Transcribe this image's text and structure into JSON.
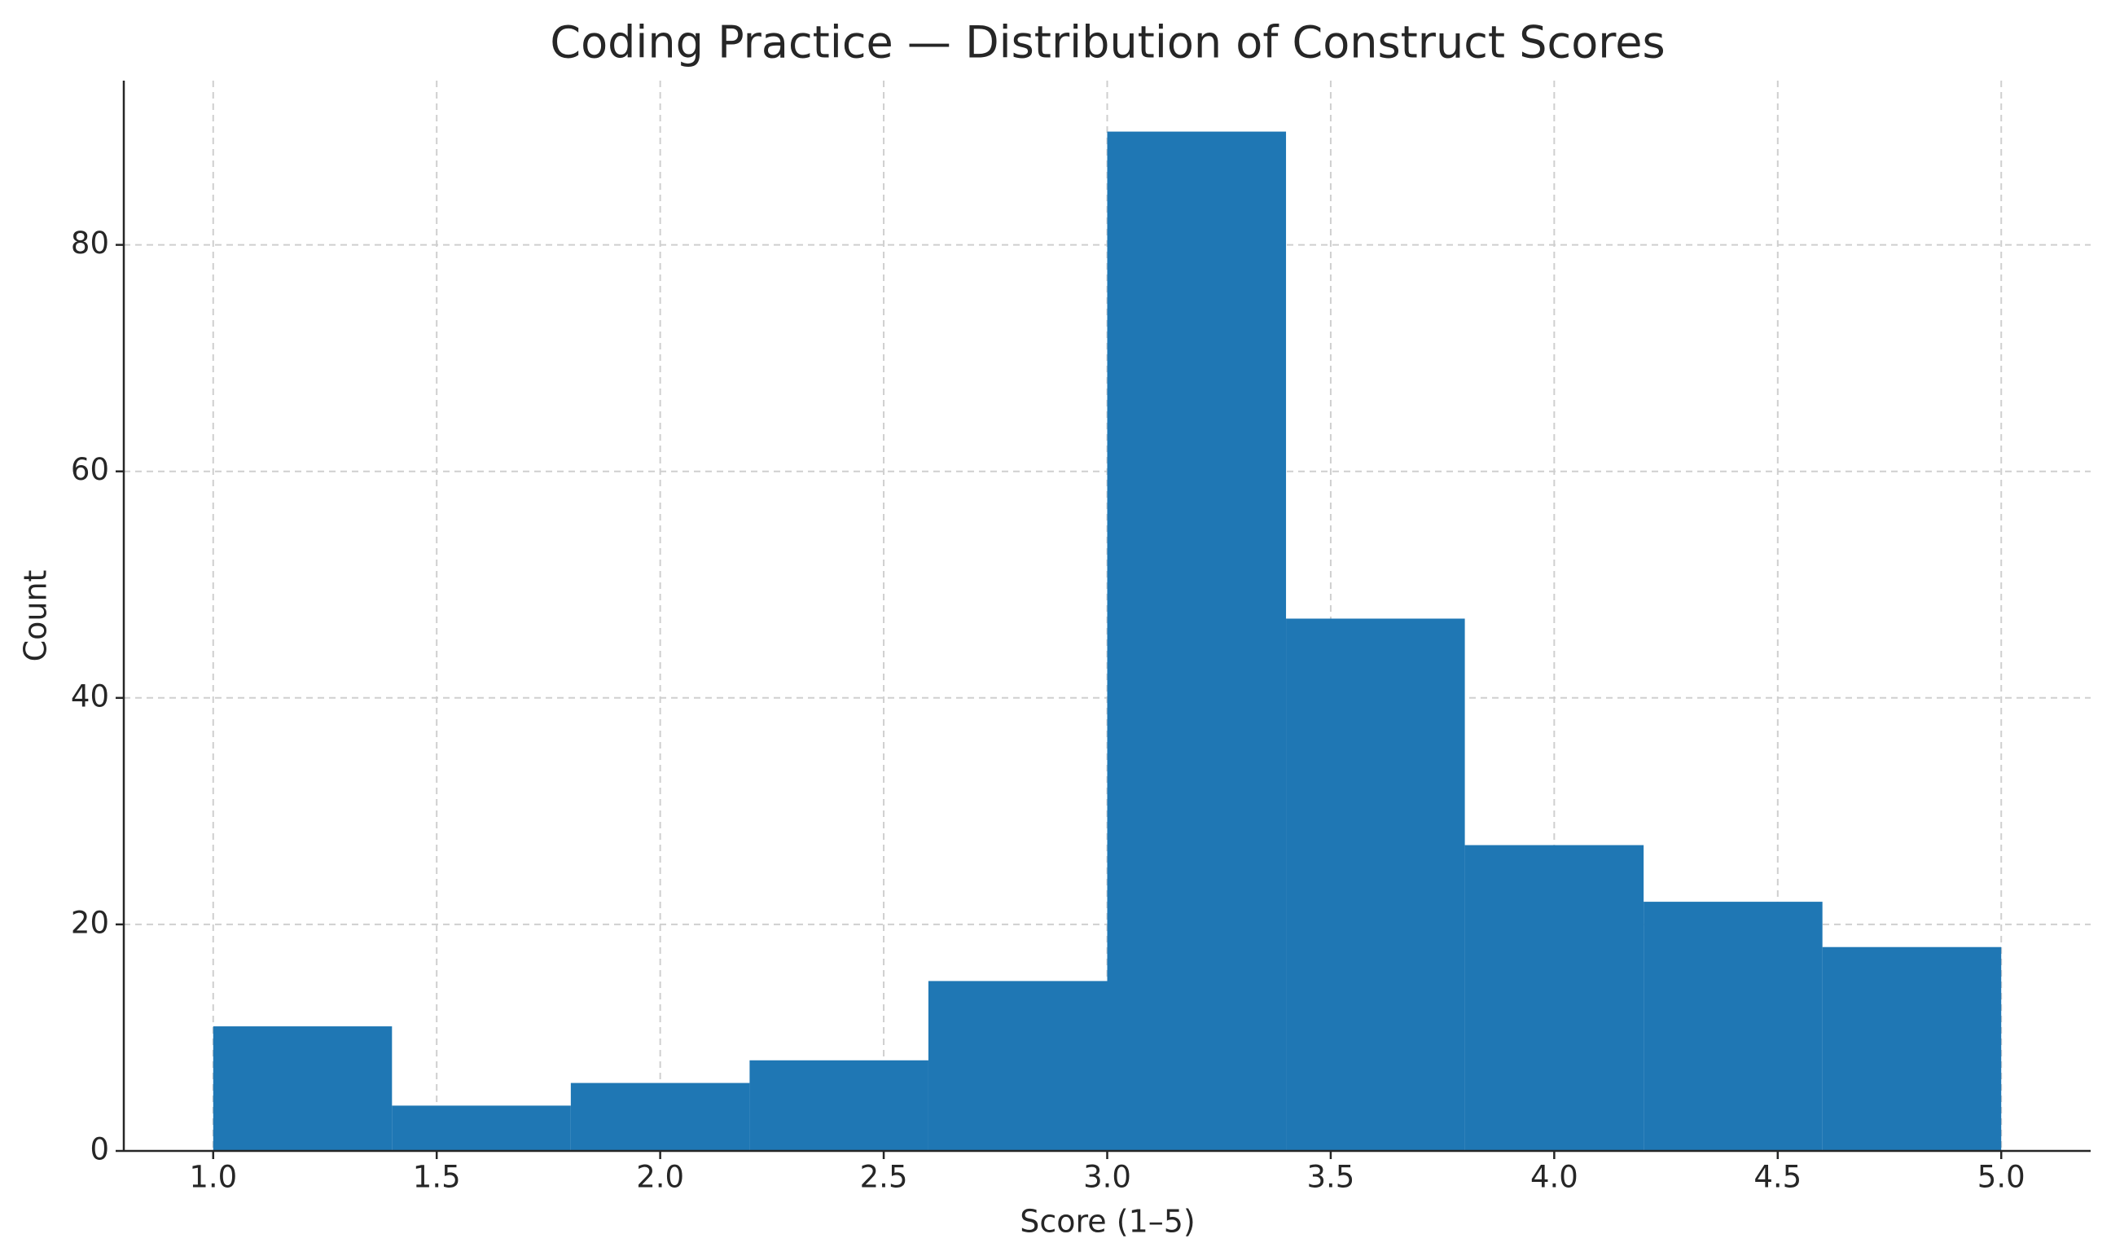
{
  "chart_data": {
    "type": "histogram",
    "title": "Coding Practice — Distribution of Construct Scores",
    "x_label": "Score (1–5)",
    "y_label": "Count",
    "bins": [
      1.0,
      1.4,
      1.8,
      2.2,
      2.6,
      3.0,
      3.4,
      3.8,
      4.2,
      4.6,
      5.0
    ],
    "values": [
      11,
      4,
      6,
      8,
      15,
      90,
      47,
      27,
      22,
      18
    ],
    "color": "#1f77b4",
    "xlim": [
      0.8,
      5.2
    ],
    "xticks": [
      {
        "value": 1,
        "label": "1.0"
      },
      {
        "value": 1.5,
        "label": "1.5"
      },
      {
        "value": 2,
        "label": "2.0"
      },
      {
        "value": 2.5,
        "label": "2.5"
      },
      {
        "value": 3,
        "label": "3.0"
      },
      {
        "value": 3.5,
        "label": "3.5"
      },
      {
        "value": 4,
        "label": "4.0"
      },
      {
        "value": 4.5,
        "label": "4.5"
      },
      {
        "value": 5,
        "label": "5.0"
      }
    ],
    "ylim": [
      0,
      94.5
    ],
    "yticks": [
      0,
      20,
      40,
      60,
      80
    ],
    "grid": true
  }
}
